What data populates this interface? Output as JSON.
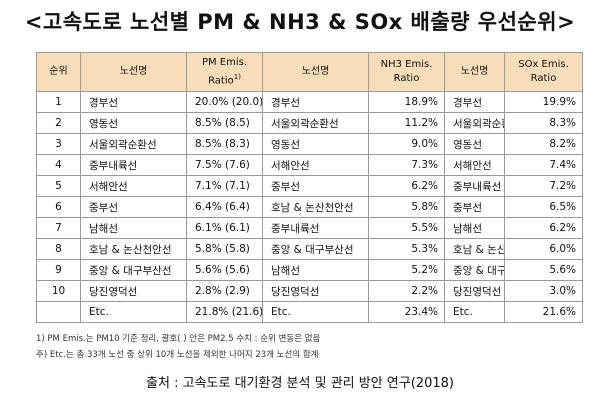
{
  "title": "<고속도로 노선별 PM & NH3 & SOx 배출량 우선순위>",
  "table": {
    "headers": {
      "rank": "순위",
      "route_a": "노선명",
      "pm_line1": "PM Emis.",
      "pm_line2": "Ratio",
      "pm_sup": "1)",
      "route_b": "노선명",
      "nh3_line1": "NH3 Emis.",
      "nh3_line2": "Ratio",
      "route_c": "노선명",
      "sox_line1": "SOx Emis.",
      "sox_line2": "Ratio"
    },
    "rows": [
      {
        "rank": "1",
        "pm_route": "경부선",
        "pm_ratio": "20.0% (20.0)",
        "nh3_route": "경부선",
        "nh3_ratio": "18.9%",
        "sox_route": "경부선",
        "sox_ratio": "19.9%"
      },
      {
        "rank": "2",
        "pm_route": "영동선",
        "pm_ratio": "8.5% (8.5)",
        "nh3_route": "서울외곽순환선",
        "nh3_ratio": "11.2%",
        "sox_route": "서울외곽순환선",
        "sox_ratio": "8.3%"
      },
      {
        "rank": "3",
        "pm_route": "서울외곽순환선",
        "pm_ratio": "8.5% (8.3)",
        "nh3_route": "영동선",
        "nh3_ratio": "9.0%",
        "sox_route": "영동선",
        "sox_ratio": "8.2%"
      },
      {
        "rank": "4",
        "pm_route": "중부내륙선",
        "pm_ratio": "7.5% (7.6)",
        "nh3_route": "서해안선",
        "nh3_ratio": "7.3%",
        "sox_route": "서해안선",
        "sox_ratio": "7.4%"
      },
      {
        "rank": "5",
        "pm_route": "서해안선",
        "pm_ratio": "7.1% (7.1)",
        "nh3_route": "중부선",
        "nh3_ratio": "6.2%",
        "sox_route": "중부내륙선",
        "sox_ratio": "7.2%"
      },
      {
        "rank": "6",
        "pm_route": "중부선",
        "pm_ratio": "6.4% (6.4)",
        "nh3_route": "호남 & 논산천안선",
        "nh3_ratio": "5.8%",
        "sox_route": "중부선",
        "sox_ratio": "6.5%"
      },
      {
        "rank": "7",
        "pm_route": "남해선",
        "pm_ratio": "6.1% (6.1)",
        "nh3_route": "중부내륙선",
        "nh3_ratio": "5.5%",
        "sox_route": "남해선",
        "sox_ratio": "6.2%"
      },
      {
        "rank": "8",
        "pm_route": "호남 & 논산천안선",
        "pm_ratio": "5.8% (5.8)",
        "nh3_route": "중앙 & 대구부산선",
        "nh3_ratio": "5.3%",
        "sox_route": "호남 & 논산천안선",
        "sox_ratio": "6.0%"
      },
      {
        "rank": "9",
        "pm_route": "중앙 & 대구부산선",
        "pm_ratio": "5.6% (5.6)",
        "nh3_route": "남해선",
        "nh3_ratio": "5.2%",
        "sox_route": "중앙 & 대구부산선",
        "sox_ratio": "5.6%"
      },
      {
        "rank": "10",
        "pm_route": "당진영덕선",
        "pm_ratio": "2.8% (2.9)",
        "nh3_route": "당진영덕선",
        "nh3_ratio": "2.2%",
        "sox_route": "당진영덕선",
        "sox_ratio": "3.0%"
      },
      {
        "rank": "",
        "pm_route": "Etc.",
        "pm_ratio": "21.8% (21.6)",
        "nh3_route": "Etc.",
        "nh3_ratio": "23.4%",
        "sox_route": "Etc.",
        "sox_ratio": "21.6%"
      }
    ]
  },
  "notes": [
    "1) PM Emis.는 PM10 기준 정리, 괄호( ) 안은 PM2.5 수치 : 순위 변동은 없음",
    "주) Etc.는 총 33개 노선 중 상위 10개 노선을 제외한 나머지 23개 노선의 합계"
  ],
  "source": "출처 : 고속도로 대기환경 분석 및 관리 방안 연구(2018)",
  "colors": {
    "header_bg": "#f7ddb9",
    "border": "#9a9a9a"
  }
}
